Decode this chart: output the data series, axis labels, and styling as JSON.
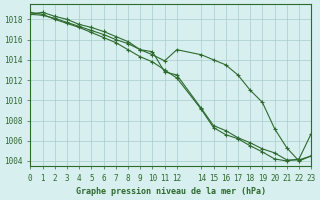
{
  "title": "Graphe pression niveau de la mer (hPa)",
  "background_color": "#d8eff0",
  "grid_color": "#aacccc",
  "line_color": "#2d6a2d",
  "xlim": [
    0,
    23
  ],
  "ylim": [
    1003.5,
    1019.5
  ],
  "yticks": [
    1004,
    1006,
    1008,
    1010,
    1012,
    1014,
    1016,
    1018
  ],
  "xtick_positions": [
    0,
    1,
    2,
    3,
    4,
    5,
    6,
    7,
    8,
    9,
    10,
    11,
    12,
    14,
    15,
    16,
    17,
    18,
    19,
    20,
    21,
    22,
    23
  ],
  "xtick_labels": [
    "0",
    "1",
    "2",
    "3",
    "4",
    "5",
    "6",
    "7",
    "8",
    "9",
    "10",
    "11",
    "12",
    "14",
    "15",
    "16",
    "17",
    "18",
    "19",
    "20",
    "21",
    "22",
    "23"
  ],
  "series": [
    [
      1018.5,
      1018.7,
      1018.3,
      1018.0,
      1017.5,
      1017.2,
      1016.8,
      1016.3,
      1015.8,
      1015.0,
      1014.8,
      1012.8,
      1012.5,
      1009.2,
      1007.5,
      1007.0,
      1006.3,
      1005.8,
      1005.2,
      1004.8,
      1004.1,
      1004.1,
      1004.5
    ],
    [
      1018.7,
      1018.5,
      1018.0,
      1017.6,
      1017.2,
      1016.7,
      1016.2,
      1015.7,
      1015.0,
      1014.3,
      1013.8,
      1013.0,
      1012.2,
      1009.1,
      1007.3,
      1006.6,
      1006.2,
      1005.5,
      1004.9,
      1004.2,
      1004.0,
      1004.2,
      1006.7
    ],
    [
      1018.5,
      1018.4,
      1018.1,
      1017.7,
      1017.3,
      1016.9,
      1016.5,
      1016.0,
      1015.6,
      1015.0,
      1014.5,
      1013.9,
      1015.0,
      1014.5,
      1014.0,
      1013.5,
      1012.5,
      1011.0,
      1009.8,
      1007.2,
      1005.3,
      1004.0,
      1004.5
    ]
  ]
}
